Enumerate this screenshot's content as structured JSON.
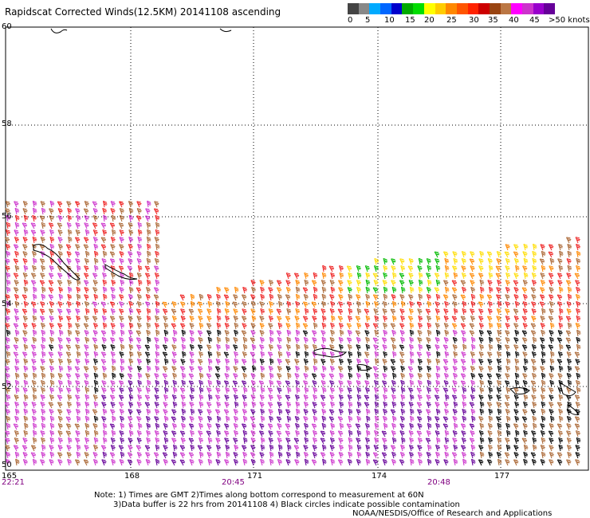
{
  "title": "Rapidscat Corrected Winds(12.5KM) 20141108 ascending",
  "legend": {
    "colors": [
      "#444444",
      "#888888",
      "#00aaff",
      "#0066ff",
      "#0000cc",
      "#00aa00",
      "#00dd00",
      "#ffff00",
      "#ffcc00",
      "#ff8800",
      "#ff5500",
      "#ff2200",
      "#cc0000",
      "#994411",
      "#bb7744",
      "#ff00ff",
      "#cc33cc",
      "#9900cc",
      "#660099"
    ],
    "labels": [
      "0",
      "5",
      "10",
      "15",
      "20",
      "25",
      "30",
      "35",
      "40",
      "45",
      ">50 knots"
    ]
  },
  "lat_labels": [
    "60",
    "58",
    "56",
    "54",
    "52",
    "50"
  ],
  "lon_labels": [
    "165",
    "168",
    "171",
    "174",
    "177"
  ],
  "time_labels": [
    "22:21",
    "20:45",
    "20:48"
  ],
  "notes": {
    "line1": "Note: 1) Times are GMT 2)Times along bottom correspond to measurement at 60N",
    "line2": "3)Data buffer is 22 hrs from 20141108 4) Black circles indicate possible contamination",
    "line3": "NOAA/NESDIS/Office of Research and Applications"
  },
  "wind_colors": {
    "calm": "#000000",
    "green": "#00bb00",
    "yellow": "#ffdd00",
    "orange": "#ff8800",
    "red": "#ee2222",
    "brown": "#aa6633",
    "magenta": "#cc33cc",
    "purple": "#660099"
  }
}
